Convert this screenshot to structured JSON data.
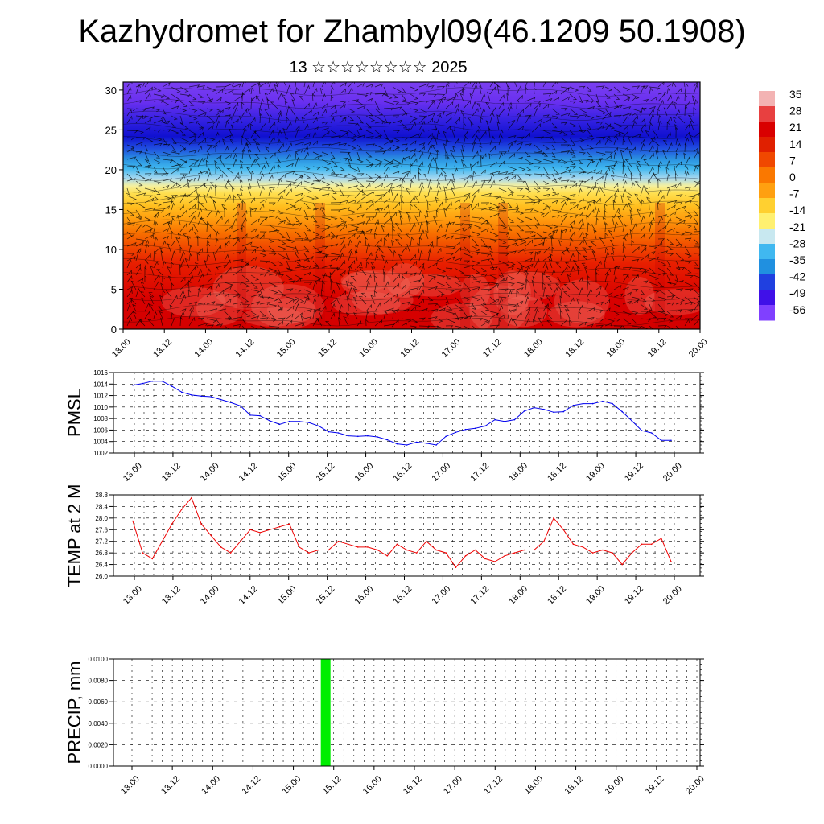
{
  "header": {
    "title": "Kazhydromet for Zhambyl09(46.1209 50.1908)",
    "subtitle": "13 ☆☆☆☆☆☆☆☆ 2025"
  },
  "chart_data": [
    {
      "type": "heatmap",
      "name": "vertical-section",
      "x_ticks": [
        "13.00",
        "13.12",
        "14.00",
        "14.12",
        "15.00",
        "15.12",
        "16.00",
        "16.12",
        "17.00",
        "17.12",
        "18.00",
        "18.12",
        "19.00",
        "19.12",
        "20.00"
      ],
      "y_ticks": [
        "0",
        "5",
        "10",
        "15",
        "20",
        "25",
        "30"
      ],
      "ylim": [
        0,
        31
      ],
      "colorbar": {
        "labels": [
          "35",
          "28",
          "21",
          "14",
          "7",
          "0",
          "-7",
          "-14",
          "-21",
          "-28",
          "-35",
          "-42",
          "-49",
          "-56"
        ],
        "colors": [
          "#f3b3b3",
          "#e84040",
          "#d90000",
          "#e02000",
          "#f04800",
          "#fa7800",
          "#ffa010",
          "#ffd030",
          "#fff070",
          "#c8e8f0",
          "#40b8f0",
          "#2090e0",
          "#2040e0",
          "#4010e8",
          "#8040ff"
        ]
      },
      "has_wind_vectors": true
    },
    {
      "type": "line",
      "name": "pmsl",
      "ylabel": "PMSL",
      "y_ticks": [
        "1016",
        "1014",
        "1012",
        "1010",
        "1008",
        "1006",
        "1004",
        "1002"
      ],
      "ylim": [
        1002,
        1016
      ],
      "x_ticks": [
        "13.00",
        "13.12",
        "14.00",
        "14.12",
        "15.00",
        "15.12",
        "16.00",
        "16.12",
        "17.00",
        "17.12",
        "18.00",
        "18.12",
        "19.00",
        "19.12",
        "20.00"
      ],
      "color": "#0000ee",
      "values": [
        1013.8,
        1014.1,
        1014.5,
        1014.5,
        1013.6,
        1012.6,
        1012.1,
        1011.9,
        1011.8,
        1011.3,
        1010.8,
        1010.2,
        1008.6,
        1008.5,
        1007.6,
        1007.0,
        1007.5,
        1007.5,
        1007.3,
        1006.7,
        1005.7,
        1005.5,
        1005.0,
        1004.9,
        1005.0,
        1004.8,
        1004.3,
        1003.6,
        1003.4,
        1003.9,
        1003.7,
        1003.4,
        1004.9,
        1005.6,
        1006.1,
        1006.3,
        1006.7,
        1007.8,
        1007.5,
        1007.8,
        1009.3,
        1009.9,
        1009.6,
        1009.1,
        1009.2,
        1010.3,
        1010.6,
        1010.6,
        1011.0,
        1010.6,
        1009.2,
        1007.6,
        1005.9,
        1005.5,
        1004.2,
        1004.2
      ]
    },
    {
      "type": "line",
      "name": "temp2m",
      "ylabel": "TEMP at 2 M",
      "y_ticks": [
        "28.8",
        "28.4",
        "28.0",
        "27.6",
        "27.2",
        "26.8",
        "26.4",
        "26.0"
      ],
      "ylim": [
        26.0,
        28.8
      ],
      "x_ticks": [
        "13.00",
        "13.12",
        "14.00",
        "14.12",
        "15.00",
        "15.12",
        "16.00",
        "16.12",
        "17.00",
        "17.12",
        "18.00",
        "18.12",
        "19.00",
        "19.12",
        "20.00"
      ],
      "color": "#ee0000",
      "values": [
        27.9,
        26.8,
        26.6,
        27.2,
        27.8,
        28.3,
        28.7,
        27.8,
        27.4,
        27.0,
        26.8,
        27.2,
        27.6,
        27.5,
        27.6,
        27.7,
        27.8,
        27.0,
        26.8,
        26.9,
        26.9,
        27.2,
        27.1,
        27.0,
        27.0,
        26.9,
        26.7,
        27.1,
        26.9,
        26.8,
        27.2,
        26.9,
        26.8,
        26.3,
        26.7,
        26.9,
        26.6,
        26.5,
        26.7,
        26.8,
        26.9,
        26.9,
        27.2,
        28.0,
        27.6,
        27.1,
        27.0,
        26.8,
        26.9,
        26.8,
        26.4,
        26.8,
        27.1,
        27.1,
        27.3,
        26.5
      ]
    },
    {
      "type": "bar",
      "name": "precip",
      "ylabel": "PRECIP, mm",
      "y_ticks": [
        "0.0100",
        "0.0080",
        "0.0060",
        "0.0040",
        "0.0020",
        "0.0000"
      ],
      "ylim": [
        0,
        0.01
      ],
      "x_ticks": [
        "13.00",
        "13.12",
        "14.00",
        "14.12",
        "15.00",
        "15.12",
        "16.00",
        "16.12",
        "17.00",
        "17.12",
        "18.00",
        "18.12",
        "19.00",
        "19.12",
        "20.00"
      ],
      "color": "#00ee00",
      "bars": [
        {
          "x": 15.5,
          "value": 0.01
        }
      ]
    }
  ]
}
